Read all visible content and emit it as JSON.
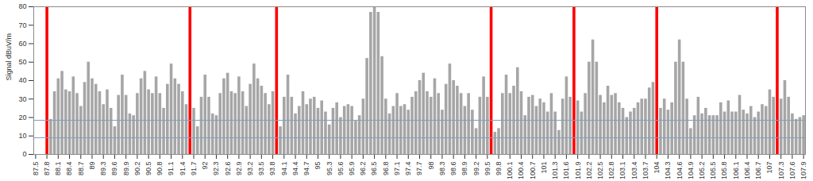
{
  "chart_data": {
    "type": "bar",
    "y_label": "Signal dBuV/m",
    "x": [
      87.5,
      87.6,
      87.7,
      87.8,
      87.9,
      88,
      88.1,
      88.2,
      88.3,
      88.4,
      88.5,
      88.6,
      88.7,
      88.8,
      88.9,
      89,
      89.1,
      89.2,
      89.3,
      89.4,
      89.5,
      89.6,
      89.7,
      89.8,
      89.9,
      90,
      90.1,
      90.2,
      90.3,
      90.4,
      90.5,
      90.6,
      90.7,
      90.8,
      90.9,
      91,
      91.1,
      91.2,
      91.3,
      91.4,
      91.5,
      91.6,
      91.7,
      91.8,
      91.9,
      92,
      92.1,
      92.2,
      92.3,
      92.4,
      92.5,
      92.6,
      92.7,
      92.8,
      92.9,
      93,
      93.1,
      93.2,
      93.3,
      93.4,
      93.5,
      93.6,
      93.7,
      93.8,
      93.9,
      94,
      94.1,
      94.2,
      94.3,
      94.4,
      94.5,
      94.6,
      94.7,
      94.8,
      94.9,
      95,
      95.1,
      95.2,
      95.3,
      95.4,
      95.5,
      95.6,
      95.7,
      95.8,
      95.9,
      96,
      96.1,
      96.2,
      96.3,
      96.4,
      96.5,
      96.6,
      96.7,
      96.8,
      96.9,
      97,
      97.1,
      97.2,
      97.3,
      97.4,
      97.5,
      97.6,
      97.7,
      97.8,
      97.9,
      98,
      98.1,
      98.2,
      98.3,
      98.4,
      98.5,
      98.6,
      98.7,
      98.8,
      98.9,
      99,
      99.1,
      99.2,
      99.3,
      99.4,
      99.5,
      99.6,
      99.7,
      99.8,
      99.9,
      100,
      100.1,
      100.2,
      100.3,
      100.4,
      100.5,
      100.6,
      100.7,
      100.8,
      100.9,
      101,
      101.1,
      101.2,
      101.3,
      101.4,
      101.5,
      101.6,
      101.7,
      101.8,
      101.9,
      102,
      102.1,
      102.2,
      102.3,
      102.4,
      102.5,
      102.6,
      102.7,
      102.8,
      102.9,
      103,
      103.1,
      103.2,
      103.3,
      103.4,
      103.5,
      103.6,
      103.7,
      103.8,
      103.9,
      104,
      104.1,
      104.2,
      104.3,
      104.4,
      104.5,
      104.6,
      104.7,
      104.8,
      104.9,
      105,
      105.1,
      105.2,
      105.3,
      105.4,
      105.5,
      105.6,
      105.7,
      105.8,
      105.9,
      106,
      106.1,
      106.2,
      106.3,
      106.4,
      106.5,
      106.6,
      106.7,
      106.8,
      106.9,
      107,
      107.1,
      107.2,
      107.3,
      107.4,
      107.5,
      107.6,
      107.7,
      107.8,
      107.9
    ],
    "values": [
      0,
      0,
      0,
      80,
      19,
      34,
      41,
      45,
      35,
      34,
      42,
      33,
      26,
      39,
      50,
      41,
      38,
      34,
      27,
      35,
      25,
      15,
      32,
      43,
      32,
      22,
      21,
      33,
      41,
      45,
      35,
      33,
      42,
      33,
      25,
      38,
      49,
      41,
      38,
      34,
      27,
      80,
      25,
      15,
      31,
      43,
      31,
      22,
      21,
      33,
      41,
      44,
      34,
      33,
      42,
      34,
      26,
      38,
      49,
      41,
      37,
      33,
      27,
      34,
      80,
      15,
      31,
      43,
      31,
      22,
      26,
      34,
      27,
      30,
      31,
      25,
      29,
      23,
      16,
      25,
      28,
      20,
      26,
      27,
      26,
      18,
      21,
      30,
      52,
      77,
      80,
      77,
      53,
      30,
      22,
      26,
      33,
      26,
      27,
      24,
      31,
      34,
      40,
      44,
      34,
      31,
      41,
      33,
      24,
      38,
      49,
      40,
      37,
      33,
      26,
      33,
      24,
      14,
      31,
      42,
      31,
      80,
      12,
      14,
      33,
      43,
      33,
      37,
      47,
      34,
      21,
      31,
      32,
      26,
      30,
      28,
      23,
      33,
      23,
      13,
      30,
      42,
      31,
      80,
      29,
      23,
      33,
      50,
      62,
      50,
      32,
      28,
      37,
      32,
      33,
      28,
      25,
      20,
      23,
      25,
      28,
      30,
      30,
      36,
      39,
      80,
      25,
      30,
      24,
      28,
      50,
      62,
      50,
      30,
      14,
      21,
      31,
      22,
      25,
      21,
      21,
      21,
      28,
      23,
      29,
      23,
      23,
      32,
      24,
      22,
      26,
      20,
      23,
      27,
      26,
      35,
      31,
      80,
      30,
      40,
      31,
      22,
      19,
      20,
      21
    ],
    "colors": [
      "#a6a6a6",
      "#a6a6a6",
      "#a6a6a6",
      "#ff0000",
      "#a6a6a6",
      "#a6a6a6",
      "#a6a6a6",
      "#a6a6a6",
      "#a6a6a6",
      "#a6a6a6",
      "#a6a6a6",
      "#a6a6a6",
      "#a6a6a6",
      "#a6a6a6",
      "#a6a6a6",
      "#a6a6a6",
      "#a6a6a6",
      "#a6a6a6",
      "#a6a6a6",
      "#a6a6a6",
      "#a6a6a6",
      "#a6a6a6",
      "#a6a6a6",
      "#a6a6a6",
      "#a6a6a6",
      "#a6a6a6",
      "#a6a6a6",
      "#a6a6a6",
      "#a6a6a6",
      "#a6a6a6",
      "#a6a6a6",
      "#a6a6a6",
      "#a6a6a6",
      "#a6a6a6",
      "#a6a6a6",
      "#a6a6a6",
      "#a6a6a6",
      "#a6a6a6",
      "#a6a6a6",
      "#a6a6a6",
      "#a6a6a6",
      "#ff0000",
      "#a6a6a6",
      "#a6a6a6",
      "#a6a6a6",
      "#a6a6a6",
      "#a6a6a6",
      "#a6a6a6",
      "#a6a6a6",
      "#a6a6a6",
      "#a6a6a6",
      "#a6a6a6",
      "#a6a6a6",
      "#a6a6a6",
      "#a6a6a6",
      "#a6a6a6",
      "#a6a6a6",
      "#a6a6a6",
      "#a6a6a6",
      "#a6a6a6",
      "#a6a6a6",
      "#a6a6a6",
      "#a6a6a6",
      "#a6a6a6",
      "#ff0000",
      "#a6a6a6",
      "#a6a6a6",
      "#a6a6a6",
      "#a6a6a6",
      "#a6a6a6",
      "#a6a6a6",
      "#a6a6a6",
      "#a6a6a6",
      "#a6a6a6",
      "#a6a6a6",
      "#a6a6a6",
      "#a6a6a6",
      "#a6a6a6",
      "#a6a6a6",
      "#a6a6a6",
      "#a6a6a6",
      "#a6a6a6",
      "#a6a6a6",
      "#a6a6a6",
      "#a6a6a6",
      "#a6a6a6",
      "#a6a6a6",
      "#a6a6a6",
      "#a6a6a6",
      "#a6a6a6",
      "#a6a6a6",
      "#a6a6a6",
      "#a6a6a6",
      "#a6a6a6",
      "#a6a6a6",
      "#a6a6a6",
      "#a6a6a6",
      "#a6a6a6",
      "#a6a6a6",
      "#a6a6a6",
      "#a6a6a6",
      "#a6a6a6",
      "#a6a6a6",
      "#a6a6a6",
      "#a6a6a6",
      "#a6a6a6",
      "#a6a6a6",
      "#a6a6a6",
      "#a6a6a6",
      "#a6a6a6",
      "#a6a6a6",
      "#a6a6a6",
      "#a6a6a6",
      "#a6a6a6",
      "#a6a6a6",
      "#a6a6a6",
      "#a6a6a6",
      "#a6a6a6",
      "#a6a6a6",
      "#a6a6a6",
      "#a6a6a6",
      "#ff0000",
      "#a6a6a6",
      "#a6a6a6",
      "#a6a6a6",
      "#a6a6a6",
      "#a6a6a6",
      "#a6a6a6",
      "#a6a6a6",
      "#a6a6a6",
      "#a6a6a6",
      "#a6a6a6",
      "#a6a6a6",
      "#a6a6a6",
      "#a6a6a6",
      "#a6a6a6",
      "#a6a6a6",
      "#a6a6a6",
      "#a6a6a6",
      "#a6a6a6",
      "#a6a6a6",
      "#a6a6a6",
      "#a6a6a6",
      "#ff0000",
      "#a6a6a6",
      "#a6a6a6",
      "#a6a6a6",
      "#a6a6a6",
      "#a6a6a6",
      "#a6a6a6",
      "#a6a6a6",
      "#a6a6a6",
      "#a6a6a6",
      "#a6a6a6",
      "#a6a6a6",
      "#a6a6a6",
      "#a6a6a6",
      "#a6a6a6",
      "#a6a6a6",
      "#a6a6a6",
      "#a6a6a6",
      "#a6a6a6",
      "#a6a6a6",
      "#a6a6a6",
      "#a6a6a6",
      "#ff0000",
      "#a6a6a6",
      "#a6a6a6",
      "#a6a6a6",
      "#a6a6a6",
      "#a6a6a6",
      "#a6a6a6",
      "#a6a6a6",
      "#a6a6a6",
      "#a6a6a6",
      "#a6a6a6",
      "#a6a6a6",
      "#a6a6a6",
      "#a6a6a6",
      "#a6a6a6",
      "#a6a6a6",
      "#a6a6a6",
      "#a6a6a6",
      "#a6a6a6",
      "#a6a6a6",
      "#a6a6a6",
      "#a6a6a6",
      "#a6a6a6",
      "#a6a6a6",
      "#a6a6a6",
      "#a6a6a6",
      "#a6a6a6",
      "#a6a6a6",
      "#a6a6a6",
      "#a6a6a6",
      "#a6a6a6",
      "#a6a6a6",
      "#ff0000",
      "#a6a6a6",
      "#a6a6a6",
      "#a6a6a6",
      "#a6a6a6",
      "#a6a6a6",
      "#a6a6a6",
      "#a6a6a6"
    ],
    "xlim": [
      87.45,
      107.95
    ],
    "xticks": [
      87.5,
      87.8,
      88.1,
      88.4,
      88.7,
      89,
      89.3,
      89.6,
      89.9,
      90.2,
      90.5,
      90.8,
      91.1,
      91.4,
      91.7,
      92,
      92.3,
      92.6,
      92.9,
      93.2,
      93.5,
      93.8,
      94.1,
      94.4,
      94.7,
      95,
      95.3,
      95.6,
      95.9,
      96.2,
      96.5,
      96.8,
      97.1,
      97.4,
      97.7,
      98,
      98.3,
      98.6,
      98.9,
      99.2,
      99.5,
      99.8,
      100.1,
      100.4,
      100.7,
      101,
      101.3,
      101.6,
      101.9,
      102.2,
      102.5,
      102.8,
      103.1,
      103.4,
      103.7,
      104,
      104.3,
      104.6,
      104.9,
      105.2,
      105.5,
      105.8,
      106.1,
      106.4,
      106.7,
      107,
      107.3,
      107.6,
      107.9
    ],
    "ylim": [
      0,
      80
    ],
    "yticks": [
      0,
      10,
      20,
      30,
      40,
      50,
      60,
      70,
      80
    ],
    "reference_lines": [
      18.5,
      9
    ],
    "grid": false
  }
}
